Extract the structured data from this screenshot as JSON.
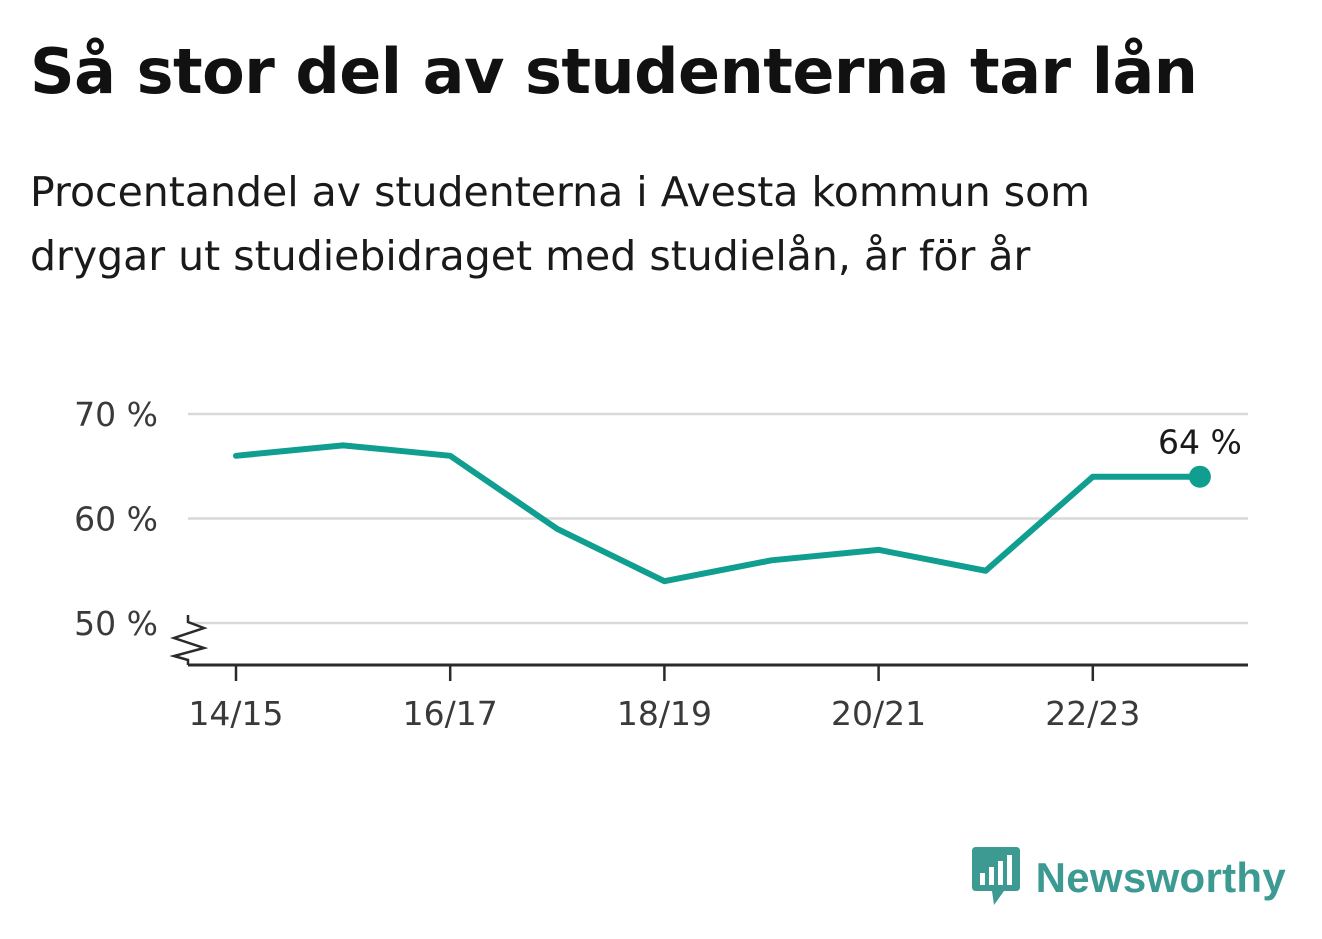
{
  "title": "Så stor del av studenterna tar lån",
  "subtitle": "Procentandel av studenterna i Avesta kommun som drygar ut studiebidraget med studielån, år för år",
  "brand": {
    "name": "Newsworthy",
    "icon": "newsworthy-logo-icon",
    "color": "#3c9a92"
  },
  "chart_data": {
    "type": "line",
    "x": [
      "14/15",
      "15/16",
      "16/17",
      "17/18",
      "18/19",
      "19/20",
      "20/21",
      "21/22",
      "22/23",
      "23/24"
    ],
    "xticks": [
      "14/15",
      "16/17",
      "18/19",
      "20/21",
      "22/23"
    ],
    "series": [
      {
        "values": [
          66,
          67,
          66,
          59,
          54,
          56,
          57,
          55,
          64,
          64
        ],
        "color": "#0f9e90"
      }
    ],
    "yticks": [
      50,
      60,
      70
    ],
    "ytick_labels": [
      "50 %",
      "60 %",
      "70 %"
    ],
    "ylim": [
      46,
      70
    ],
    "y_axis_break": true,
    "end_label": "64 %",
    "grid": true,
    "xlabel": "",
    "ylabel": ""
  }
}
